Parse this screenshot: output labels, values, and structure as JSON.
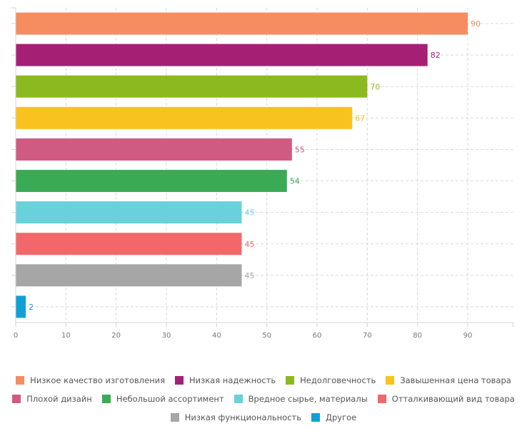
{
  "chart_data": {
    "type": "bar",
    "orientation": "horizontal",
    "title": "",
    "xlabel": "",
    "ylabel": "",
    "xlim": [
      0,
      99
    ],
    "x_ticks": [
      0,
      10,
      20,
      30,
      40,
      50,
      60,
      70,
      80,
      90
    ],
    "grid": true,
    "legend_position": "bottom",
    "categories": [
      "Низкое качество изготовления",
      "Низкая надежность",
      "Недолговечность",
      "Завышенная цена товара",
      "Плохой дизайн",
      "Небольшой ассортимент",
      "Вредное сырье, материалы",
      "Отталкивающий вид товара",
      "Низкая функциональность",
      "Другое"
    ],
    "values": [
      90,
      82,
      70,
      67,
      55,
      54,
      45,
      45,
      45,
      2
    ],
    "colors": [
      "#f58d61",
      "#a52075",
      "#8db920",
      "#f9c31f",
      "#cf5b82",
      "#3aaa55",
      "#69d1dc",
      "#f2686a",
      "#a6a6a6",
      "#0fa0d6"
    ],
    "data_labels": [
      "90",
      "82",
      "70",
      "67",
      "55",
      "54",
      "45",
      "45",
      "45",
      "2"
    ]
  },
  "legend": {
    "rows": [
      [
        0,
        1,
        2,
        3
      ],
      [
        4,
        5,
        6,
        7
      ],
      [
        8,
        9
      ]
    ]
  }
}
